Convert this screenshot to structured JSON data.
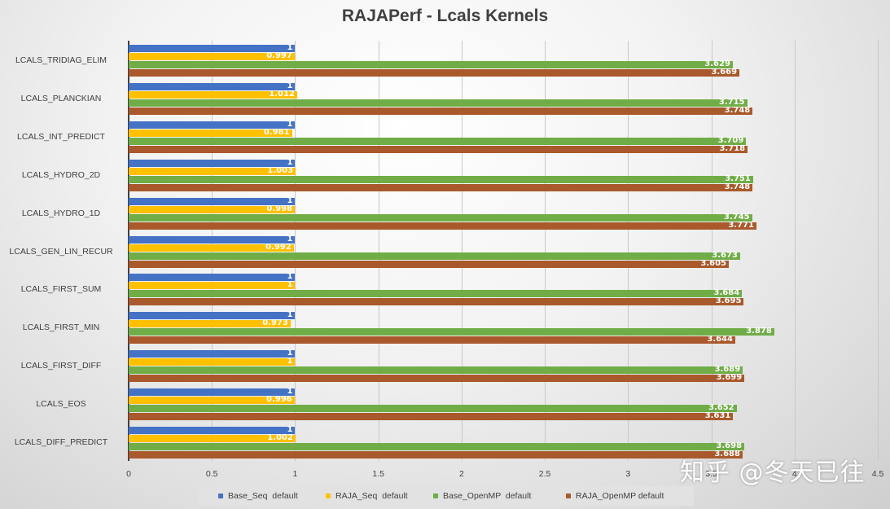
{
  "chart_data": {
    "type": "bar",
    "orientation": "horizontal",
    "title": "RAJAPerf - Lcals Kernels",
    "xlabel": "",
    "ylabel": "",
    "xlim": [
      0,
      4.5
    ],
    "x_ticks": [
      "0",
      "0.5",
      "1",
      "1.5",
      "2",
      "2.5",
      "3",
      "3.5",
      "4",
      "4.5"
    ],
    "grid": true,
    "legend_position": "bottom",
    "categories": [
      "LCALS_TRIDIAG_ELIM",
      "LCALS_PLANCKIAN",
      "LCALS_INT_PREDICT",
      "LCALS_HYDRO_2D",
      "LCALS_HYDRO_1D",
      "LCALS_GEN_LIN_RECUR",
      "LCALS_FIRST_SUM",
      "LCALS_FIRST_MIN",
      "LCALS_FIRST_DIFF",
      "LCALS_EOS",
      "LCALS_DIFF_PREDICT"
    ],
    "series": [
      {
        "name": "Base_Seq  default",
        "color": "#4472C4",
        "values": [
          1,
          1,
          1,
          1,
          1,
          1,
          1,
          1,
          1,
          1,
          1
        ],
        "labels": [
          "1",
          "1",
          "1",
          "1",
          "1",
          "1",
          "1",
          "1",
          "1",
          "1",
          "1"
        ]
      },
      {
        "name": "RAJA_Seq  default",
        "color": "#FFC000",
        "values": [
          0.997,
          1.012,
          0.981,
          1.003,
          0.998,
          0.992,
          1,
          0.973,
          1,
          0.996,
          1.002
        ],
        "labels": [
          "0.997",
          "1.012",
          "0.981",
          "1.003",
          "0.998",
          "0.992",
          "1",
          "0.973",
          "1",
          "0.996",
          "1.002"
        ]
      },
      {
        "name": "Base_OpenMP  default",
        "color": "#70AD47",
        "values": [
          3.629,
          3.715,
          3.709,
          3.751,
          3.745,
          3.673,
          3.684,
          3.878,
          3.689,
          3.652,
          3.698
        ],
        "labels": [
          "3.629",
          "3.715",
          "3.709",
          "3.751",
          "3.745",
          "3.673",
          "3.684",
          "3.878",
          "3.689",
          "3.652",
          "3.698"
        ]
      },
      {
        "name": "RAJA_OpenMP default",
        "color": "#A9592B",
        "values": [
          3.669,
          3.748,
          3.718,
          3.748,
          3.771,
          3.605,
          3.695,
          3.644,
          3.699,
          3.631,
          3.688
        ],
        "labels": [
          "3.669",
          "3.748",
          "3.718",
          "3.748",
          "3.771",
          "3.605",
          "3.695",
          "3.644",
          "3.699",
          "3.631",
          "3.688"
        ]
      }
    ]
  },
  "watermark": "知乎 @冬天已往"
}
